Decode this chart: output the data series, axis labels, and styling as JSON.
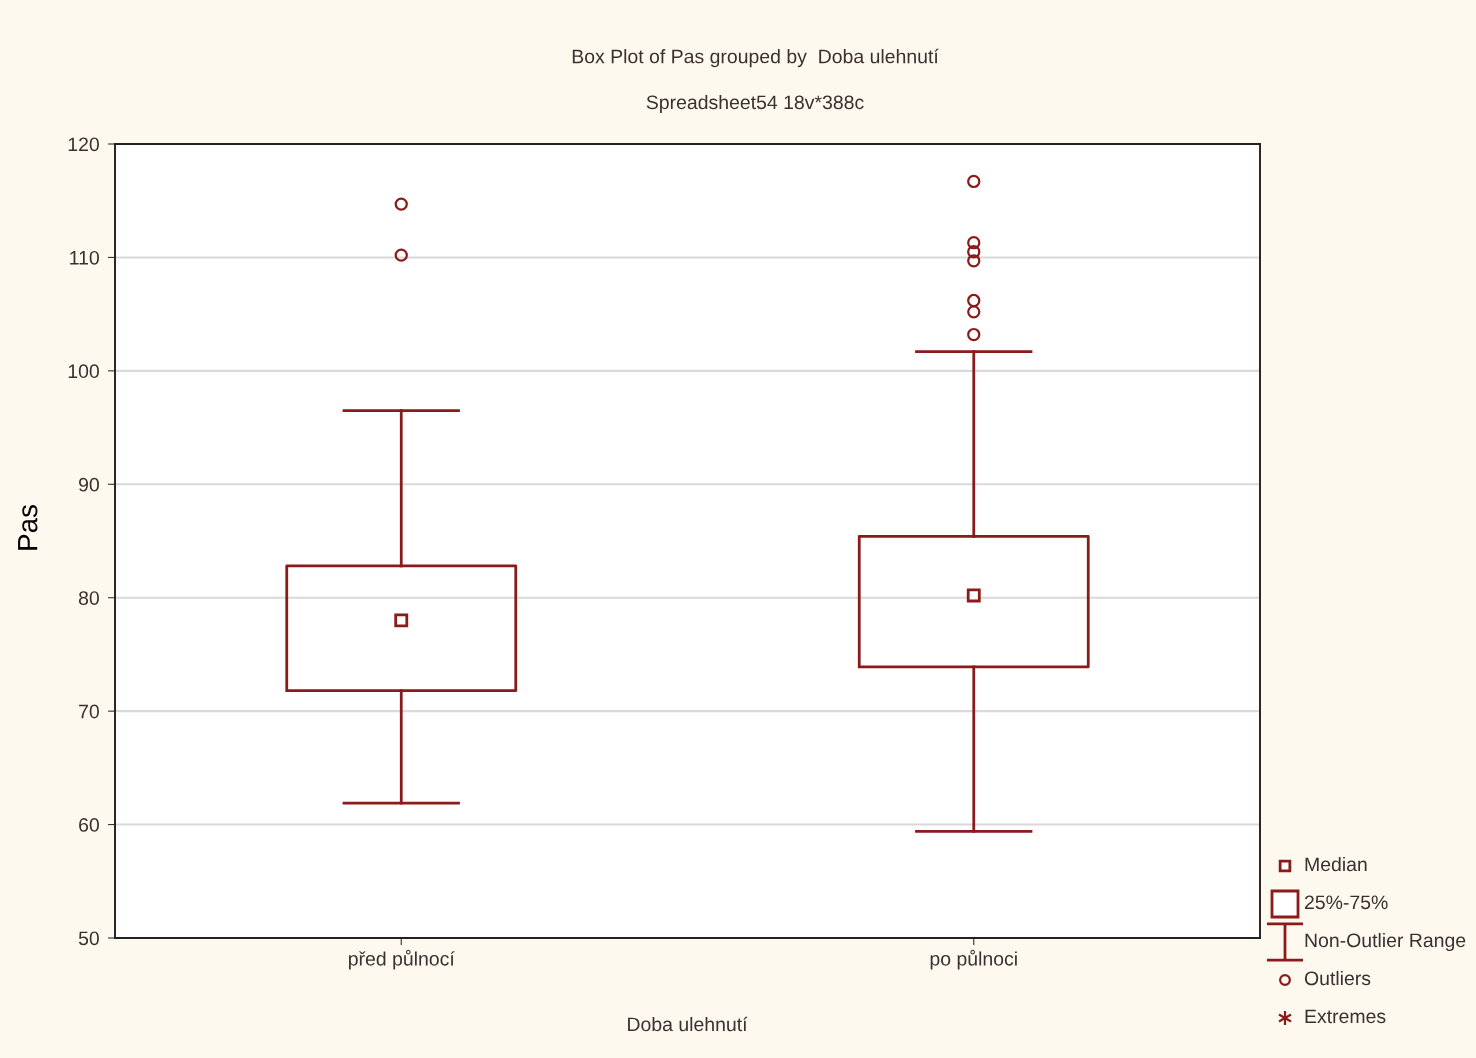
{
  "chart_data": {
    "type": "box",
    "title": "Box Plot of Pas grouped by  Doba ulehnutí",
    "subtitle": "Spreadsheet54 18v*388c",
    "xlabel": "Doba ulehnutí",
    "ylabel": "Pas",
    "categories": [
      "před půlnocí",
      "po půlnoci"
    ],
    "series": [
      {
        "color": "#8b1a1a",
        "boxes": [
          {
            "low": 61.9,
            "q1": 71.8,
            "median": 78.0,
            "q3": 82.8,
            "high": 96.5,
            "outliers": [
              114.7,
              110.2
            ]
          },
          {
            "low": 59.4,
            "q1": 73.9,
            "median": 80.2,
            "q3": 85.4,
            "high": 101.7,
            "outliers": [
              116.7,
              111.3,
              110.5,
              109.7,
              106.2,
              105.2,
              103.2
            ]
          }
        ]
      }
    ],
    "ylim": [
      50,
      120
    ],
    "yticks": [
      50,
      60,
      70,
      80,
      90,
      100,
      110,
      120
    ],
    "grid": "y",
    "annotations": [
      "Median",
      "25%-75%",
      "Non-Outlier Range",
      "Outliers",
      "Extremes"
    ]
  }
}
